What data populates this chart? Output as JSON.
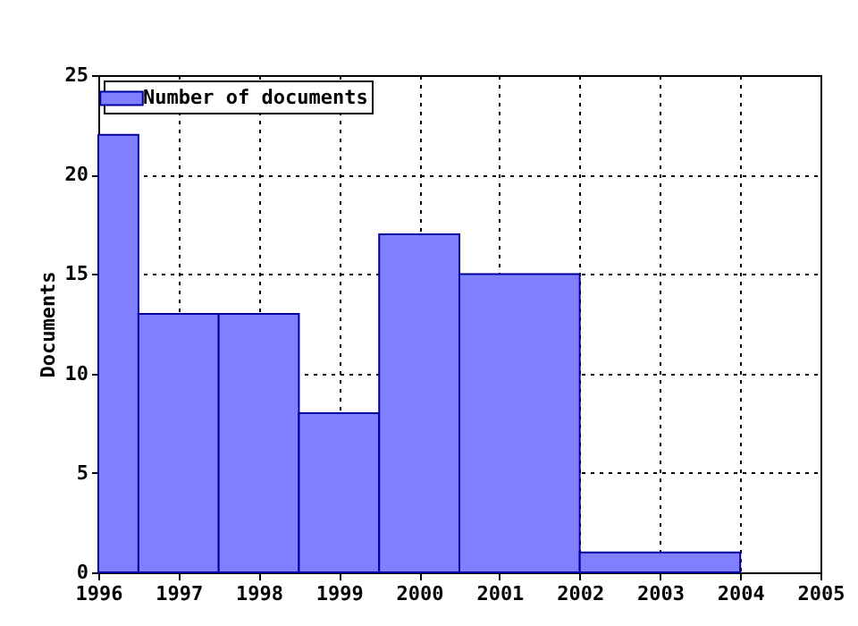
{
  "chart_data": {
    "type": "histogram",
    "ylabel": "Documents",
    "bins": [
      1996,
      1996.5,
      1997.5,
      1998.5,
      1999.5,
      2000.5,
      2002,
      2004
    ],
    "series": [
      {
        "name": "Number of documents",
        "color": "#8080ff",
        "values": [
          22,
          13,
          13,
          8,
          17,
          15,
          1
        ]
      }
    ],
    "xlim": [
      1996,
      2005
    ],
    "xticks": [
      1996,
      1997,
      1998,
      1999,
      2000,
      2001,
      2002,
      2003,
      2004,
      2005
    ],
    "ylim": [
      0,
      25
    ],
    "yticks": [
      0,
      5,
      10,
      15,
      20,
      25
    ],
    "grid": true,
    "legend": "top left"
  }
}
